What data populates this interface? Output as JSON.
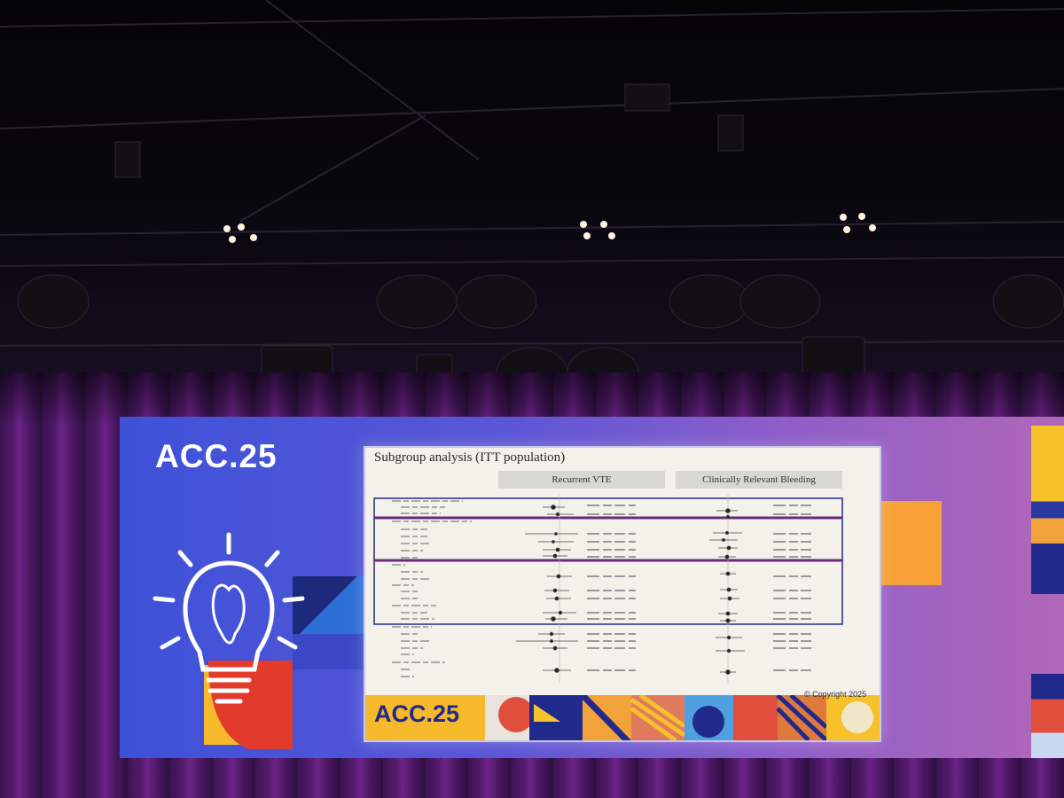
{
  "scene": {
    "stage_logo": "ACC.25",
    "colors": {
      "backdrop_blue": "#3d52d8",
      "curtain": "#5a1d75",
      "slide_bg": "#f4f1ea",
      "frame_navy": "#1f2a8c",
      "highlight_purple": "#6a2a7a"
    }
  },
  "slide": {
    "title": "Subgroup analysis (ITT population)",
    "col1_header": "Recurrent VTE",
    "col2_header": "Clinically Relevant Bleeding",
    "footer_logo": "ACC.25",
    "copyright": "© Copyright 2025"
  }
}
